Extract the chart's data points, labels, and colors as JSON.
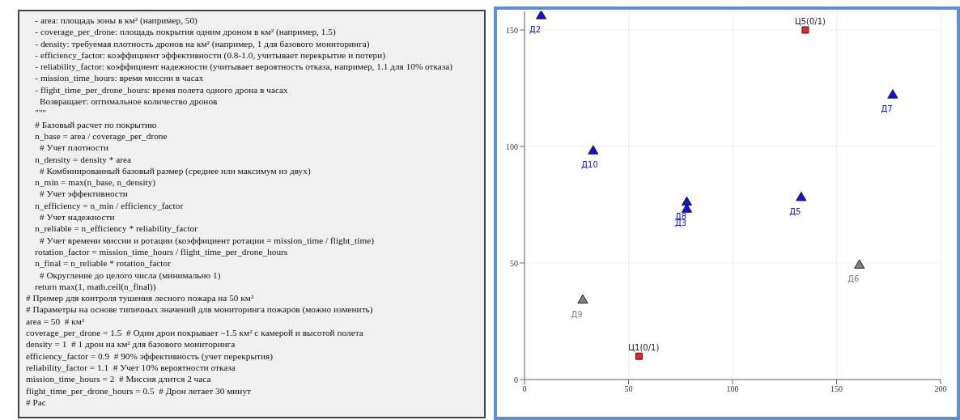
{
  "chart_data": [
    {
      "type": "other",
      "annotations": [
        "    - area: площадь зоны в км² (например, 50)",
        "    - coverage_per_drone: площадь покрытия одним дроном в км² (например, 1.5)",
        "    - density: требуемая плотность дронов на км² (например, 1 для базового мониторинга)",
        "    - efficiency_factor: коэффициент эффективности (0.8-1.0, учитывает перекрытие и потери)",
        "    - reliability_factor: коэффициент надежности (учитывает вероятность отказа, например, 1.1 для 10% отказа)",
        "    - mission_time_hours: время миссии в часах",
        "    - flight_time_per_drone_hours: время полета одного дрона в часах",
        "      Возвращает: оптимальное количество дронов",
        "    \"\"\"",
        "    # Базовый расчет по покрытию",
        "    n_base = area / coverage_per_drone",
        "      # Учет плотности",
        "    n_density = density * area",
        "      # Комбинированный базовый размер (среднее или максимум из двух)",
        "    n_min = max(n_base, n_density)",
        "      # Учет эффективности",
        "    n_efficiency = n_min / efficiency_factor",
        "      # Учет надежности",
        "    n_reliable = n_efficiency * reliability_factor",
        "      # Учет времени миссии и ротации (коэффициент ротации = mission_time / flight_time)",
        "    rotation_factor = mission_time_hours / flight_time_per_drone_hours",
        "    n_final = n_reliable * rotation_factor",
        "      # Округление до целого числа (минимально 1)",
        "    return max(1, math.ceil(n_final))",
        "# Пример для контроля тушения лесного пожара на 50 км²",
        "# Параметры на основе типичных значений для мониторинга пожаров (можно изменить)",
        "area = 50  # км²",
        "coverage_per_drone = 1.5  # Один дрон покрывает ~1.5 км² с камерой и высотой полета",
        "density = 1  # 1 дрон на км² для базового мониторинга",
        "efficiency_factor = 0.9  # 90% эффективность (учет перекрытия)",
        "reliability_factor = 1.1  # Учет 10% вероятности отказа",
        "mission_time_hours = 2  # Миссия длится 2 часа",
        "flight_time_per_drone_hours = 0.5  # Дрон летает 30 минут",
        "# Рас"
      ]
    },
    {
      "type": "scatter",
      "xlim": [
        0,
        200
      ],
      "xticks": [
        0,
        50,
        100,
        150,
        200
      ],
      "ylim": [
        0,
        158
      ],
      "yticks": [
        0,
        50,
        100,
        150
      ],
      "grid": true,
      "series": [
        {
          "color": "#1010e0",
          "marker": "triangle",
          "x": [
            8,
            177,
            33,
            78,
            78,
            133
          ],
          "values": [
            156,
            122,
            98,
            76,
            73,
            78
          ],
          "value_labels": [
            "Д2",
            "Д7",
            "Д10",
            "Д8",
            "Д3",
            "Д5"
          ]
        },
        {
          "color": "#808080",
          "marker": "triangle",
          "x": [
            161,
            28
          ],
          "values": [
            49,
            34
          ],
          "value_labels": [
            "Д6",
            "Д9"
          ]
        },
        {
          "color": "#ee2222",
          "marker": "square",
          "x": [
            135,
            55
          ],
          "values": [
            150,
            10
          ],
          "value_labels": [
            "Ц5(0/1)",
            "Ц1(0/1)"
          ]
        }
      ]
    }
  ]
}
